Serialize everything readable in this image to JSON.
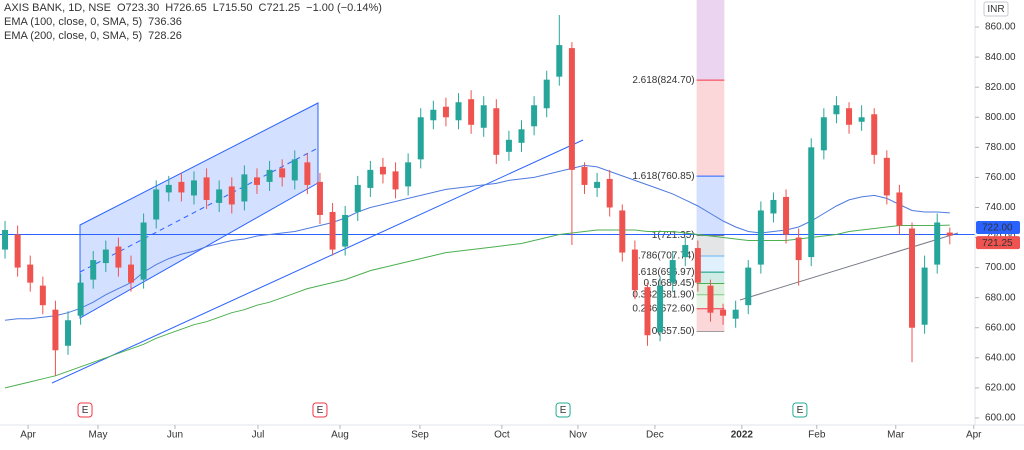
{
  "chart_data": {
    "type": "candlestick",
    "header": {
      "title": "AXIS BANK, 1D, NSE",
      "ohlc": [
        "O723.30",
        "H726.65",
        "L715.50",
        "C721.25",
        "−1.00 (−0.14%)"
      ]
    },
    "currency": "INR",
    "up_color": "#26a69a",
    "down_color": "#ef5350",
    "x": [
      0,
      1,
      2,
      3,
      4,
      5,
      6,
      7,
      8,
      9,
      10,
      11,
      12,
      13,
      14,
      15,
      16,
      17,
      18,
      19,
      20,
      21,
      22,
      23,
      24,
      25,
      26,
      27,
      28,
      29,
      30,
      31,
      32,
      33,
      34,
      35,
      36,
      37,
      38,
      39,
      40,
      41,
      42,
      43,
      44,
      45,
      46,
      47,
      48,
      49,
      50,
      51,
      52,
      53,
      54,
      55,
      56,
      57,
      58,
      59,
      60,
      61,
      62,
      63,
      64,
      65,
      66,
      67,
      68,
      69,
      70,
      71,
      72,
      73,
      74,
      75
    ],
    "open": [
      712,
      722,
      702,
      688,
      672,
      648,
      668,
      692,
      703,
      714,
      702,
      692,
      732,
      750,
      757,
      748,
      760,
      743,
      754,
      744,
      760,
      757,
      766,
      758,
      770,
      757,
      737,
      714,
      737,
      753,
      767,
      764,
      754,
      772,
      798,
      807,
      798,
      812,
      793,
      806,
      777,
      783,
      794,
      806,
      827,
      846,
      767,
      753,
      759,
      738,
      712,
      687,
      657,
      690,
      707,
      713,
      688,
      672,
      666,
      675,
      702,
      736,
      747,
      720,
      707,
      778,
      802,
      806,
      797,
      802,
      773,
      750,
      726,
      662,
      702,
      723.3
    ],
    "high": [
      731,
      728,
      708,
      694,
      678,
      671,
      696,
      711,
      718,
      720,
      708,
      736,
      758,
      761,
      763,
      764,
      766,
      758,
      760,
      768,
      766,
      771,
      772,
      778,
      776,
      763,
      743,
      741,
      761,
      771,
      773,
      770,
      776,
      806,
      811,
      813,
      816,
      818,
      814,
      812,
      791,
      798,
      814,
      831,
      868,
      850,
      770,
      763,
      765,
      742,
      718,
      690,
      694,
      711,
      720,
      718,
      692,
      676,
      678,
      705,
      744,
      750,
      752,
      726,
      786,
      806,
      814,
      810,
      808,
      806,
      778,
      755,
      730,
      708,
      736,
      726.65
    ],
    "low": [
      706,
      694,
      684,
      669,
      628,
      642,
      662,
      686,
      697,
      694,
      684,
      686,
      726,
      744,
      744,
      742,
      739,
      737,
      736,
      738,
      749,
      751,
      754,
      752,
      749,
      729,
      708,
      708,
      731,
      747,
      756,
      746,
      748,
      766,
      792,
      794,
      792,
      789,
      787,
      769,
      771,
      777,
      788,
      800,
      821,
      715,
      749,
      747,
      734,
      704,
      679,
      648,
      651,
      684,
      701,
      684,
      664,
      662,
      660,
      669,
      696,
      730,
      716,
      688,
      701,
      772,
      796,
      789,
      791,
      769,
      742,
      722,
      637,
      656,
      696,
      715.5
    ],
    "close": [
      725,
      700,
      690,
      675,
      645,
      665,
      690,
      705,
      712,
      700,
      690,
      730,
      752,
      755,
      750,
      758,
      745,
      752,
      742,
      762,
      755,
      765,
      760,
      772,
      755,
      735,
      712,
      735,
      755,
      765,
      762,
      752,
      770,
      800,
      805,
      800,
      810,
      795,
      808,
      775,
      785,
      792,
      808,
      825,
      848,
      765,
      755,
      757,
      740,
      710,
      685,
      655,
      688,
      705,
      715,
      690,
      670,
      668,
      672,
      700,
      738,
      745,
      722,
      705,
      780,
      800,
      808,
      795,
      800,
      775,
      748,
      728,
      660,
      700,
      730,
      721.25
    ],
    "series": [
      {
        "name": "EMA (100, close, 0, SMA, 5)",
        "color": "#4f7ae0",
        "values": [
          665,
          666,
          666,
          667,
          668,
          670,
          673,
          677,
          682,
          686,
          690,
          697,
          702,
          706,
          709,
          711,
          714,
          716,
          718,
          719,
          721,
          722,
          723,
          724,
          726,
          728,
          730,
          733,
          737,
          740,
          742,
          744,
          746,
          748,
          750,
          752,
          753,
          754,
          755,
          756,
          758,
          759,
          760,
          762,
          764,
          766,
          768,
          767,
          764,
          761,
          758,
          755,
          752,
          749,
          745,
          741,
          736,
          731,
          727,
          724,
          723,
          724,
          725,
          727,
          731,
          736,
          741,
          745,
          747,
          748,
          746,
          742,
          738,
          737,
          737,
          736.36
        ]
      },
      {
        "name": "EMA (200, close, 0, SMA, 5)",
        "color": "#4caf50",
        "values": [
          620,
          622,
          624,
          626,
          628,
          631,
          634,
          637,
          640,
          643,
          646,
          649,
          653,
          656,
          659,
          662,
          664,
          667,
          670,
          672,
          675,
          677,
          680,
          683,
          686,
          688,
          690,
          692,
          695,
          698,
          700,
          702,
          704,
          706,
          708,
          710,
          711,
          712,
          713,
          714,
          715,
          716,
          718,
          720,
          722,
          723,
          724,
          725,
          725,
          725,
          725,
          724,
          724,
          724,
          723,
          722,
          721,
          720,
          719,
          718,
          718,
          718,
          718,
          719,
          720,
          721,
          722,
          724,
          725,
          726,
          727,
          728,
          728,
          728,
          728,
          728.26
        ]
      }
    ],
    "fib": {
      "x": [
        54.9,
        57.1
      ],
      "levels": [
        {
          "value": 657.5,
          "label": "0(657.50)",
          "color": "#9e9e9e"
        },
        {
          "value": 672.6,
          "label": "0.236(672.60)",
          "color": "#f23645"
        },
        {
          "value": 681.9,
          "label": "0.382(681.90)",
          "color": "#81c784"
        },
        {
          "value": 689.45,
          "label": "0.5(689.45)",
          "color": "#4caf50"
        },
        {
          "value": 696.97,
          "label": "0.618(696.97)",
          "color": "#089981"
        },
        {
          "value": 707.74,
          "label": "0.786(707.74)",
          "color": "#64b5f6"
        },
        {
          "value": 721.35,
          "label": "1(721.35)",
          "color": "#787b86"
        },
        {
          "value": 760.85,
          "label": "1.618(760.85)",
          "color": "#2962ff"
        },
        {
          "value": 824.7,
          "label": "2.618(824.70)",
          "color": "#f23645"
        }
      ],
      "top_color": "#9c27b0"
    },
    "events": [
      {
        "label": "E",
        "x": 6.35,
        "color": "#f23645"
      },
      {
        "label": "E",
        "x": 25,
        "color": "#f23645"
      },
      {
        "label": "E",
        "x": 44.3,
        "color": "#22ab94"
      },
      {
        "label": "E",
        "x": 63.1,
        "color": "#22ab94"
      }
    ],
    "price_tags": [
      {
        "value": 722,
        "label": "722.00",
        "color": "#2962ff"
      },
      {
        "value": 721.25,
        "label": "721.25",
        "color": "#ef5350"
      }
    ],
    "xlim": [
      -0.4,
      77.0
    ],
    "xticks": [
      {
        "value": 1.83,
        "label": "Apr"
      },
      {
        "value": 7.38,
        "label": "May"
      },
      {
        "value": 13.49,
        "label": "Jun"
      },
      {
        "value": 20.08,
        "label": "Jul"
      },
      {
        "value": 26.59,
        "label": "Aug"
      },
      {
        "value": 32.94,
        "label": "Sep"
      },
      {
        "value": 39.44,
        "label": "Oct"
      },
      {
        "value": 45.48,
        "label": "Nov"
      },
      {
        "value": 51.59,
        "label": "Dec"
      },
      {
        "value": 58.49,
        "label": "2022"
      },
      {
        "value": 64.44,
        "label": "Feb"
      },
      {
        "value": 70.71,
        "label": "Mar"
      },
      {
        "value": 76.9,
        "label": "Apr"
      }
    ],
    "ylim": [
      595.3,
      878
    ],
    "yticks": [
      {
        "value": 600,
        "label": "600.00"
      },
      {
        "value": 620,
        "label": "620.00"
      },
      {
        "value": 640,
        "label": "640.00"
      },
      {
        "value": 660,
        "label": "660.00"
      },
      {
        "value": 680,
        "label": "680.00"
      },
      {
        "value": 700,
        "label": "700.00"
      },
      {
        "value": 720,
        "label": "720.00"
      },
      {
        "value": 740,
        "label": "740.00"
      },
      {
        "value": 760,
        "label": "760.00"
      },
      {
        "value": 780,
        "label": "780.00"
      },
      {
        "value": 800,
        "label": "800.00"
      },
      {
        "value": 820,
        "label": "820.00"
      },
      {
        "value": 840,
        "label": "840.00"
      },
      {
        "value": 860,
        "label": "860.00"
      }
    ]
  }
}
